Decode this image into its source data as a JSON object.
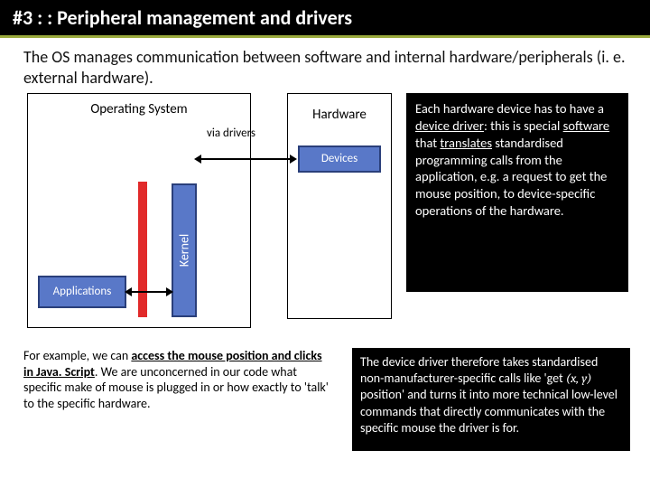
{
  "titlebar": {
    "text": "#3 : : Peripheral management and drivers"
  },
  "intro": "The OS manages communication between software and internal hardware/peripherals (i. e. external hardware).",
  "diagram": {
    "os_label": "Operating System",
    "hw_label": "Hardware",
    "devices_label": "Devices",
    "kernel_label": "Kernel",
    "apps_label": "Applications",
    "via_label": "via drivers"
  },
  "note": {
    "pre": "Each hardware device has to have a ",
    "u1": "device driver",
    "mid1": ": this is special ",
    "u2": "software",
    "mid2": " that ",
    "u3": "translates",
    "post": " standardised programming calls from the application, e.g. a request to get the mouse position, to device-specific operations of the hardware."
  },
  "bottom_left": {
    "pre": "For example, we can ",
    "u1": "access the mouse position and clicks in Java. Script",
    "post": ". We are unconcerned in our code what specific make of mouse is plugged in or how exactly to 'talk' to the specific hardware."
  },
  "bottom_right": {
    "pre": "The device driver therefore takes standardised non-manufacturer-specific calls like 'get ",
    "math": "(x, y)",
    "post": " position' and turns it into more technical low-level commands that directly communicates with the specific mouse the driver is for."
  },
  "colors": {
    "accent": "#5978c8",
    "accent_border": "#2a3f7a",
    "red": "#e12a2a",
    "olive": "#9aaa3d"
  }
}
